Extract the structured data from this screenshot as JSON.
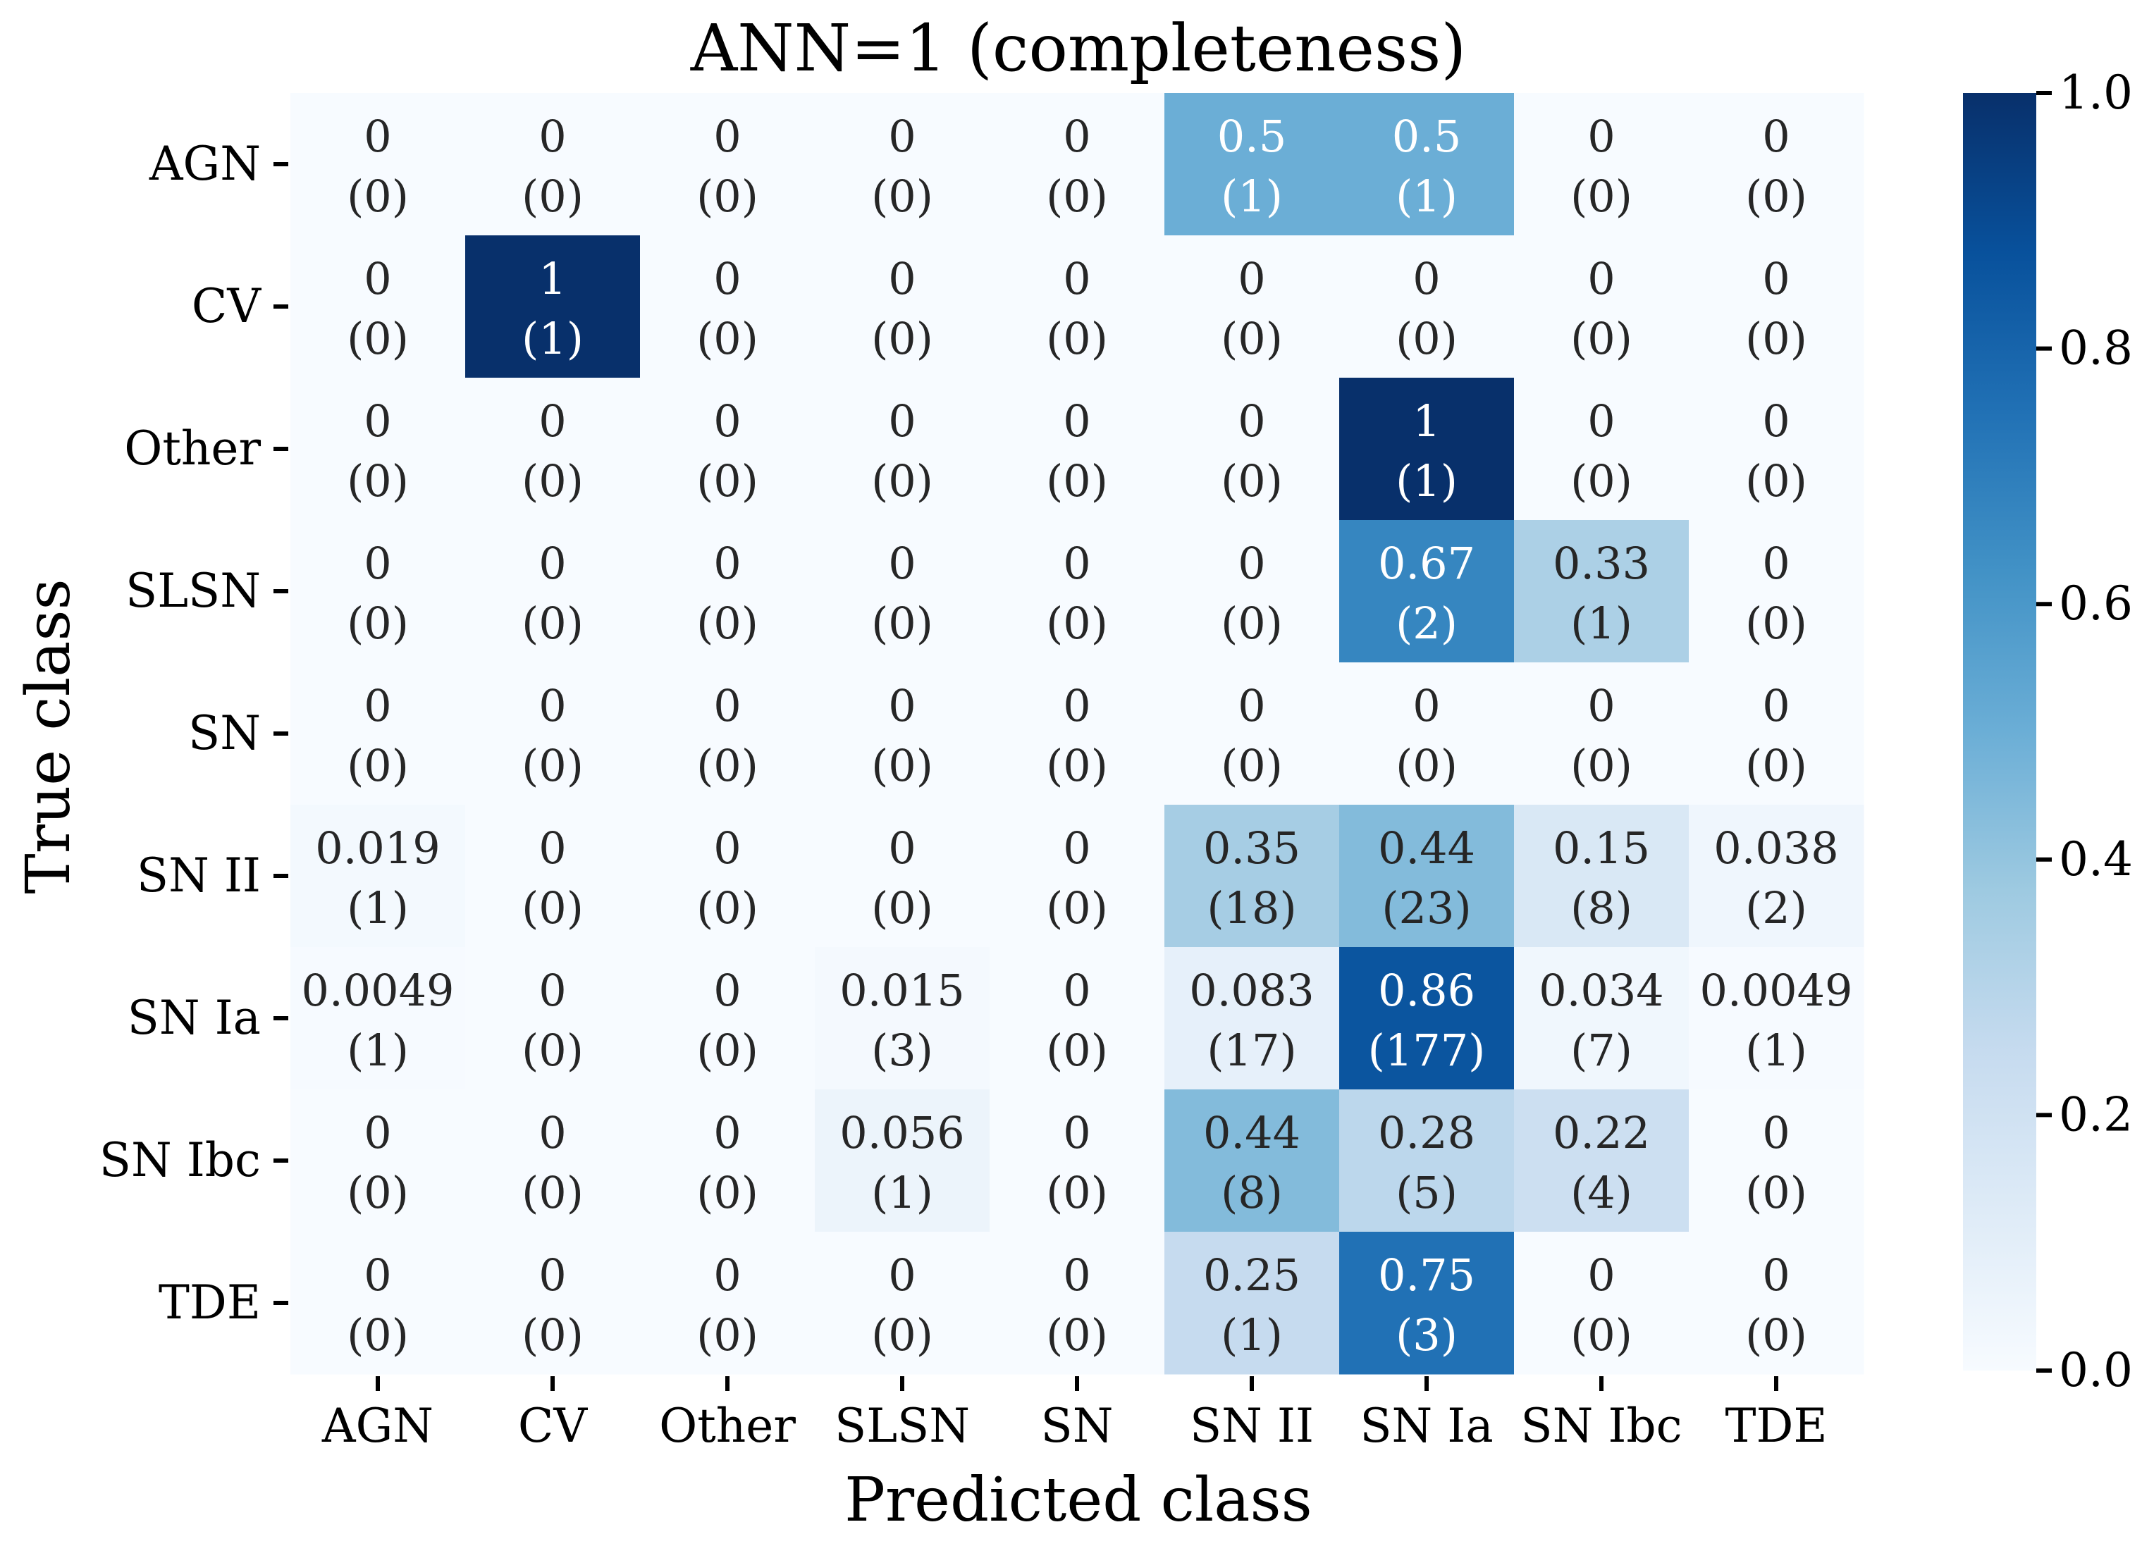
{
  "chart_data": {
    "type": "heatmap",
    "title": "ANN=1 (completeness)",
    "xlabel": "Predicted class",
    "ylabel": "True class",
    "x_categories": [
      "AGN",
      "CV",
      "Other",
      "SLSN",
      "SN",
      "SN II",
      "SN Ia",
      "SN Ibc",
      "TDE"
    ],
    "y_categories": [
      "AGN",
      "CV",
      "Other",
      "SLSN",
      "SN",
      "SN II",
      "SN Ia",
      "SN Ibc",
      "TDE"
    ],
    "values": [
      [
        0,
        0,
        0,
        0,
        0,
        0.5,
        0.5,
        0,
        0
      ],
      [
        0,
        1,
        0,
        0,
        0,
        0,
        0,
        0,
        0
      ],
      [
        0,
        0,
        0,
        0,
        0,
        0,
        1,
        0,
        0
      ],
      [
        0,
        0,
        0,
        0,
        0,
        0,
        0.67,
        0.33,
        0
      ],
      [
        0,
        0,
        0,
        0,
        0,
        0,
        0,
        0,
        0
      ],
      [
        0.019,
        0,
        0,
        0,
        0,
        0.35,
        0.44,
        0.15,
        0.038
      ],
      [
        0.0049,
        0,
        0,
        0.015,
        0,
        0.083,
        0.86,
        0.034,
        0.0049
      ],
      [
        0,
        0,
        0,
        0.056,
        0,
        0.44,
        0.28,
        0.22,
        0
      ],
      [
        0,
        0,
        0,
        0,
        0,
        0.25,
        0.75,
        0,
        0
      ]
    ],
    "counts": [
      [
        0,
        0,
        0,
        0,
        0,
        1,
        1,
        0,
        0
      ],
      [
        0,
        1,
        0,
        0,
        0,
        0,
        0,
        0,
        0
      ],
      [
        0,
        0,
        0,
        0,
        0,
        0,
        1,
        0,
        0
      ],
      [
        0,
        0,
        0,
        0,
        0,
        0,
        2,
        1,
        0
      ],
      [
        0,
        0,
        0,
        0,
        0,
        0,
        0,
        0,
        0
      ],
      [
        1,
        0,
        0,
        0,
        0,
        18,
        23,
        8,
        2
      ],
      [
        1,
        0,
        0,
        3,
        0,
        17,
        177,
        7,
        1
      ],
      [
        0,
        0,
        0,
        1,
        0,
        8,
        5,
        4,
        0
      ],
      [
        0,
        0,
        0,
        0,
        0,
        1,
        3,
        0,
        0
      ]
    ],
    "colorbar": {
      "range": [
        0,
        1
      ],
      "ticks": [
        "0.0",
        "0.2",
        "0.4",
        "0.6",
        "0.8",
        "1.0"
      ],
      "colormap": "Blues",
      "low_color": "#f7fbff",
      "high_color": "#08306b"
    },
    "grid": false
  }
}
